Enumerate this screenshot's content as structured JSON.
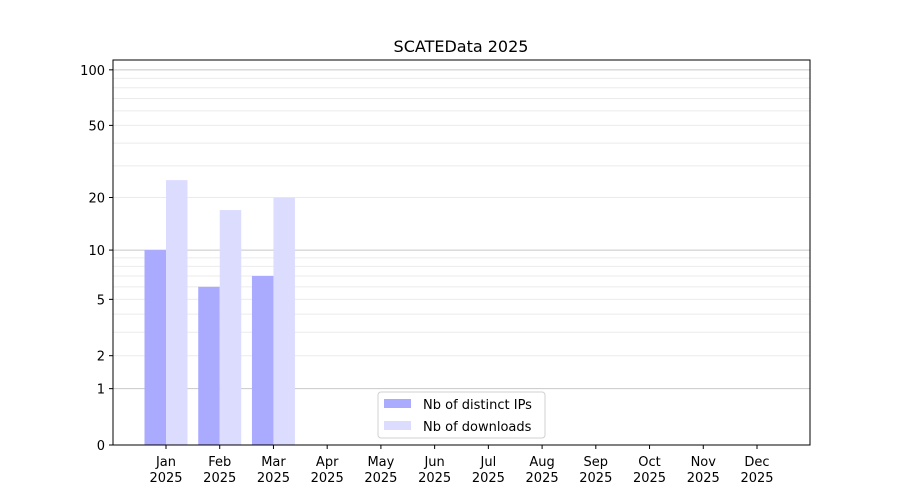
{
  "chart_data": {
    "type": "bar",
    "title": "SCATEData 2025",
    "xlabel": "",
    "ylabel": "",
    "yscale": "log(1+y)",
    "ylim": [
      0,
      113
    ],
    "grid": true,
    "legend_position": "bottom-center",
    "categories": [
      "Jan\n2025",
      "Feb\n2025",
      "Mar\n2025",
      "Apr\n2025",
      "May\n2025",
      "Jun\n2025",
      "Jul\n2025",
      "Aug\n2025",
      "Sep\n2025",
      "Oct\n2025",
      "Nov\n2025",
      "Dec\n2025"
    ],
    "y_ticks": [
      0,
      1,
      2,
      5,
      10,
      20,
      50,
      100
    ],
    "series": [
      {
        "name": "Nb of distinct IPs",
        "color": "#aaaaff",
        "values": [
          10,
          6,
          7,
          0,
          0,
          0,
          0,
          0,
          0,
          0,
          0,
          0
        ]
      },
      {
        "name": "Nb of downloads",
        "color": "#dcdcff",
        "values": [
          25,
          17,
          20,
          0,
          0,
          0,
          0,
          0,
          0,
          0,
          0,
          0
        ]
      }
    ]
  }
}
